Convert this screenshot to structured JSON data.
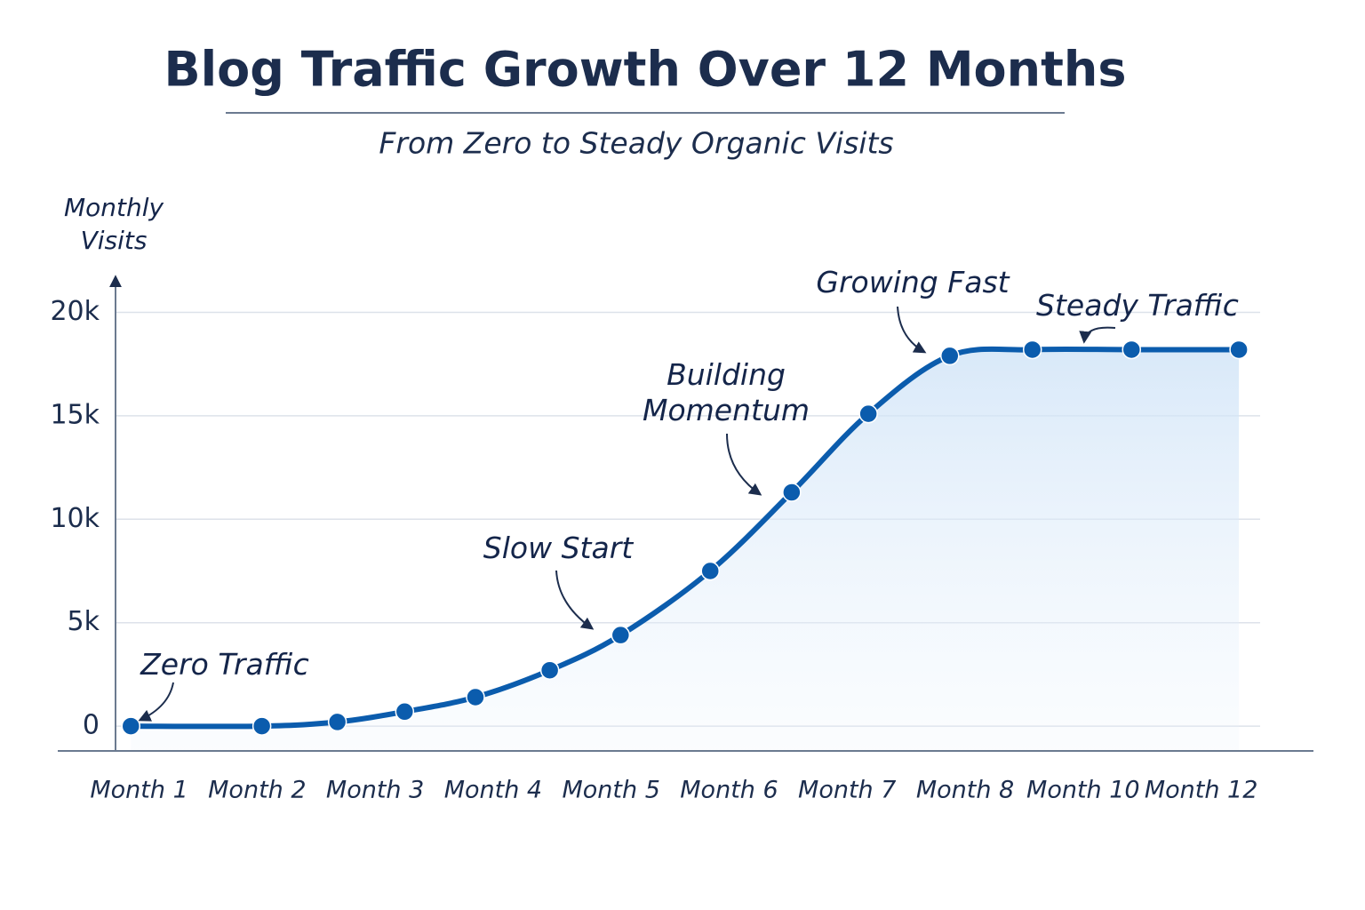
{
  "chart_data": {
    "type": "line",
    "title": "Blog Traffic Growth Over 12 Months",
    "subtitle": "From Zero to Steady Organic Visits",
    "y_label": "Monthly Visits",
    "x": [
      0.93,
      2.04,
      2.68,
      3.25,
      3.85,
      4.48,
      5.08,
      5.84,
      6.53,
      7.18,
      7.87,
      8.57,
      9.41,
      10.32
    ],
    "series": [
      {
        "name": "Monthly Visits",
        "color": "#0b5cad",
        "values": [
          0,
          0,
          200,
          700,
          1400,
          2700,
          4400,
          7500,
          11300,
          15100,
          17900,
          18200,
          18200,
          18200
        ]
      }
    ],
    "xlim": [
      0.8,
      10.5
    ],
    "xticks": [
      {
        "value": 1,
        "label": "Month 1"
      },
      {
        "value": 2,
        "label": "Month 2"
      },
      {
        "value": 3,
        "label": "Month 3"
      },
      {
        "value": 4,
        "label": "Month 4"
      },
      {
        "value": 5,
        "label": "Month 5"
      },
      {
        "value": 6,
        "label": "Month 6"
      },
      {
        "value": 7,
        "label": "Month 7"
      },
      {
        "value": 8,
        "label": "Month 8"
      },
      {
        "value": 9,
        "label": "Month 10"
      },
      {
        "value": 10,
        "label": "Month 12"
      }
    ],
    "ylim": [
      -1200,
      22000
    ],
    "yticks": [
      0,
      {
        "value": 5000,
        "label": "5k"
      },
      {
        "value": 10000,
        "label": "10k"
      },
      {
        "value": 15000,
        "label": "15k"
      },
      {
        "value": 20000,
        "label": "20k"
      }
    ],
    "grid": true,
    "annotations": [
      "Zero Traffic",
      "Slow Start",
      "Building Momentum",
      "Growing Fast",
      "Steady Traffic"
    ]
  }
}
